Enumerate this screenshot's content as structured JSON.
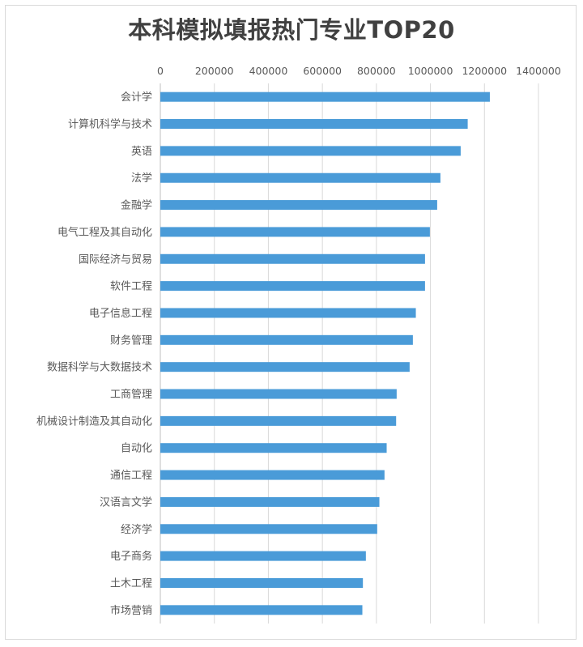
{
  "chart_data": {
    "type": "bar",
    "orientation": "horizontal",
    "title": "本科模拟填报热门专业TOP20",
    "xlabel": "",
    "ylabel": "",
    "xlim": [
      0,
      1400000
    ],
    "x_ticks": [
      "0",
      "200000",
      "400000",
      "600000",
      "800000",
      "1000000",
      "1200000",
      "1400000"
    ],
    "x_axis_position": "top",
    "grid": "vertical",
    "legend": "none",
    "bar_color": "#4a9bd8",
    "categories": [
      "会计学",
      "计算机科学与技术",
      "英语",
      "法学",
      "金融学",
      "电气工程及其自动化",
      "国际经济与贸易",
      "软件工程",
      "电子信息工程",
      "财务管理",
      "数据科学与大数据技术",
      "工商管理",
      "机械设计制造及其自动化",
      "自动化",
      "通信工程",
      "汉语言文学",
      "经济学",
      "电子商务",
      "土木工程",
      "市场营销"
    ],
    "values": [
      1220000,
      1138000,
      1112000,
      1037000,
      1025000,
      998000,
      980000,
      980000,
      946000,
      935000,
      923000,
      875000,
      873000,
      838000,
      830000,
      811000,
      803000,
      761000,
      750000,
      748000
    ]
  }
}
